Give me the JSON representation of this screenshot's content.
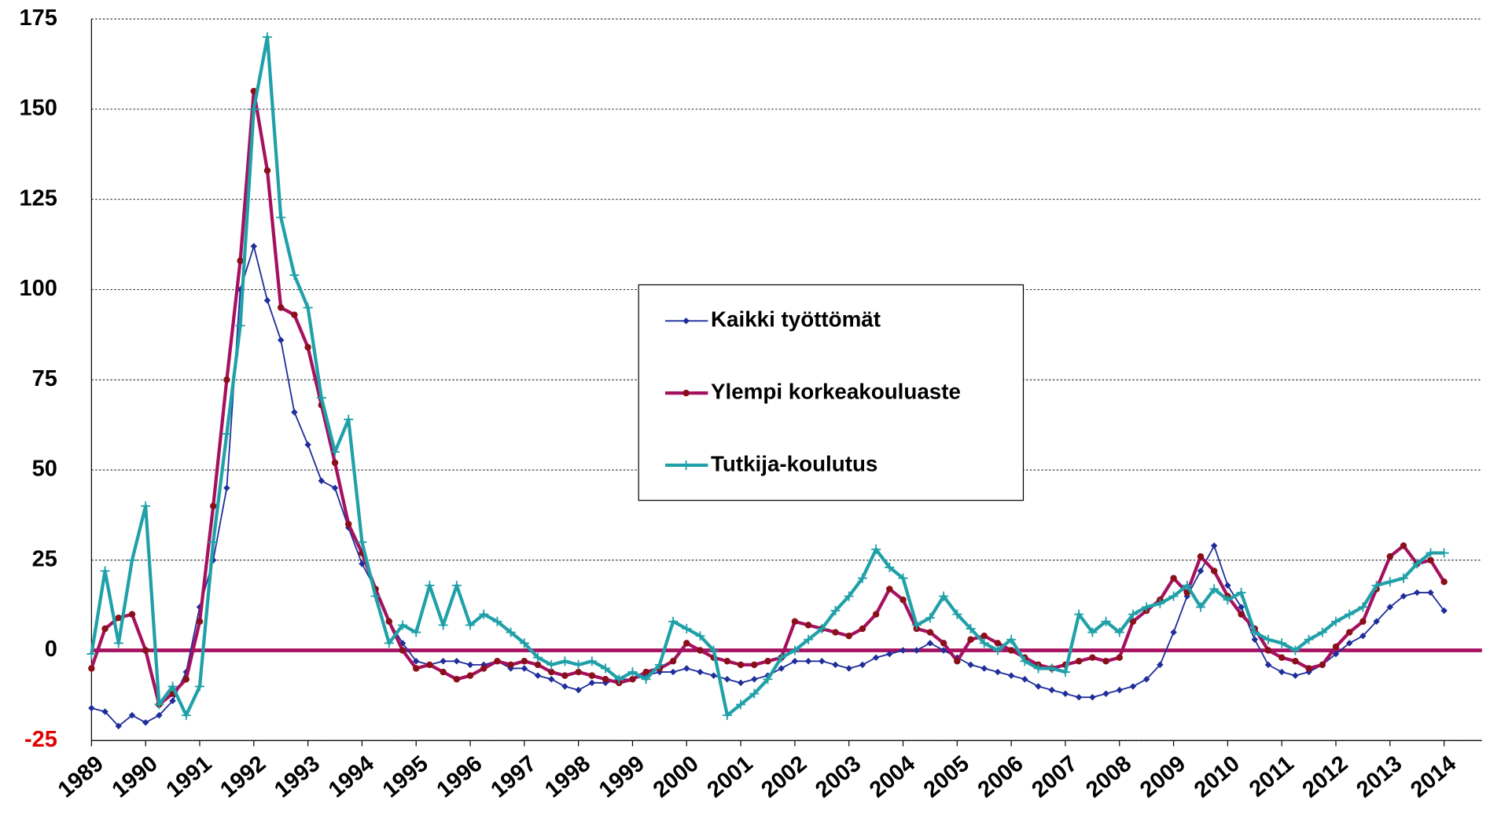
{
  "chart_data": {
    "type": "line",
    "x": [
      1989,
      1989.25,
      1989.5,
      1989.75,
      1990,
      1990.25,
      1990.5,
      1990.75,
      1991,
      1991.25,
      1991.5,
      1991.75,
      1992,
      1992.25,
      1992.5,
      1992.75,
      1993,
      1993.25,
      1993.5,
      1993.75,
      1994,
      1994.25,
      1994.5,
      1994.75,
      1995,
      1995.25,
      1995.5,
      1995.75,
      1996,
      1996.25,
      1996.5,
      1996.75,
      1997,
      1997.25,
      1997.5,
      1997.75,
      1998,
      1998.25,
      1998.5,
      1998.75,
      1999,
      1999.25,
      1999.5,
      1999.75,
      2000,
      2000.25,
      2000.5,
      2000.75,
      2001,
      2001.25,
      2001.5,
      2001.75,
      2002,
      2002.25,
      2002.5,
      2002.75,
      2003,
      2003.25,
      2003.5,
      2003.75,
      2004,
      2004.25,
      2004.5,
      2004.75,
      2005,
      2005.25,
      2005.5,
      2005.75,
      2006,
      2006.25,
      2006.5,
      2006.75,
      2007,
      2007.25,
      2007.5,
      2007.75,
      2008,
      2008.25,
      2008.5,
      2008.75,
      2009,
      2009.25,
      2009.5,
      2009.75,
      2010,
      2010.25,
      2010.5,
      2010.75,
      2011,
      2011.25,
      2011.5,
      2011.75,
      2012,
      2012.25,
      2012.5,
      2012.75,
      2013,
      2013.25,
      2013.5,
      2013.75,
      2014
    ],
    "series": [
      {
        "name": "Kaikki työttömät",
        "color": "#1f2d9a",
        "marker": "diamond",
        "values": [
          -16,
          -17,
          -21,
          -18,
          -20,
          -18,
          -14,
          -6,
          12,
          25,
          45,
          100,
          112,
          97,
          86,
          66,
          57,
          47,
          45,
          34,
          24,
          17,
          8,
          2,
          -3,
          -4,
          -3,
          -3,
          -4,
          -4,
          -3,
          -5,
          -5,
          -7,
          -8,
          -10,
          -11,
          -9,
          -9,
          -8,
          -8,
          -7,
          -6,
          -6,
          -5,
          -6,
          -7,
          -8,
          -9,
          -8,
          -7,
          -5,
          -3,
          -3,
          -3,
          -4,
          -5,
          -4,
          -2,
          -1,
          0,
          0,
          2,
          0,
          -2,
          -4,
          -5,
          -6,
          -7,
          -8,
          -10,
          -11,
          -12,
          -13,
          -13,
          -12,
          -11,
          -10,
          -8,
          -4,
          5,
          15,
          22,
          29,
          18,
          12,
          3,
          -4,
          -6,
          -7,
          -6,
          -4,
          -1,
          2,
          4,
          8,
          12,
          15,
          16,
          16,
          11
        ]
      },
      {
        "name": "Ylempi korkeakouluaste",
        "color": "#a5115f",
        "marker": "circle",
        "values": [
          -5,
          6,
          9,
          10,
          0,
          -15,
          -12,
          -8,
          8,
          40,
          75,
          108,
          155,
          133,
          95,
          93,
          84,
          68,
          52,
          35,
          27,
          17,
          8,
          0,
          -5,
          -4,
          -6,
          -8,
          -7,
          -5,
          -3,
          -4,
          -3,
          -4,
          -6,
          -7,
          -6,
          -7,
          -8,
          -9,
          -8,
          -6,
          -5,
          -3,
          2,
          0,
          -2,
          -3,
          -4,
          -4,
          -3,
          -2,
          8,
          7,
          6,
          5,
          4,
          6,
          10,
          17,
          14,
          6,
          5,
          2,
          -3,
          3,
          4,
          2,
          0,
          -2,
          -4,
          -5,
          -4,
          -3,
          -2,
          -3,
          -2,
          8,
          11,
          14,
          20,
          16,
          26,
          22,
          15,
          10,
          6,
          0,
          -2,
          -3,
          -5,
          -4,
          1,
          5,
          8,
          17,
          26,
          29,
          24,
          25,
          19
        ]
      },
      {
        "name": "Tutkija-koulutus",
        "color": "#20a0a8",
        "marker": "plus",
        "values": [
          -1,
          22,
          2,
          25,
          40,
          -15,
          -10,
          -18,
          -10,
          30,
          60,
          90,
          150,
          170,
          120,
          104,
          95,
          70,
          55,
          64,
          30,
          15,
          2,
          7,
          5,
          18,
          7,
          18,
          7,
          10,
          8,
          5,
          2,
          -2,
          -4,
          -3,
          -4,
          -3,
          -5,
          -8,
          -6,
          -8,
          -4,
          8,
          6,
          4,
          0,
          -18,
          -15,
          -12,
          -8,
          -2,
          0,
          3,
          6,
          11,
          15,
          20,
          28,
          23,
          20,
          7,
          9,
          15,
          10,
          6,
          2,
          0,
          3,
          -3,
          -5,
          -5,
          -6,
          10,
          5,
          8,
          5,
          10,
          12,
          13,
          15,
          18,
          12,
          17,
          14,
          16,
          5,
          3,
          2,
          0,
          3,
          5,
          8,
          10,
          12,
          18,
          19,
          20,
          24,
          27,
          27
        ]
      }
    ],
    "xlim": [
      1989,
      2014.7
    ],
    "xticks": [
      1989,
      1990,
      1991,
      1992,
      1993,
      1994,
      1995,
      1996,
      1997,
      1998,
      1999,
      2000,
      2001,
      2002,
      2003,
      2004,
      2005,
      2006,
      2007,
      2008,
      2009,
      2010,
      2011,
      2012,
      2013,
      2014
    ],
    "ylim": [
      -25,
      175
    ],
    "yticks": [
      -25,
      0,
      25,
      50,
      75,
      100,
      125,
      150,
      175
    ],
    "grid": true
  }
}
